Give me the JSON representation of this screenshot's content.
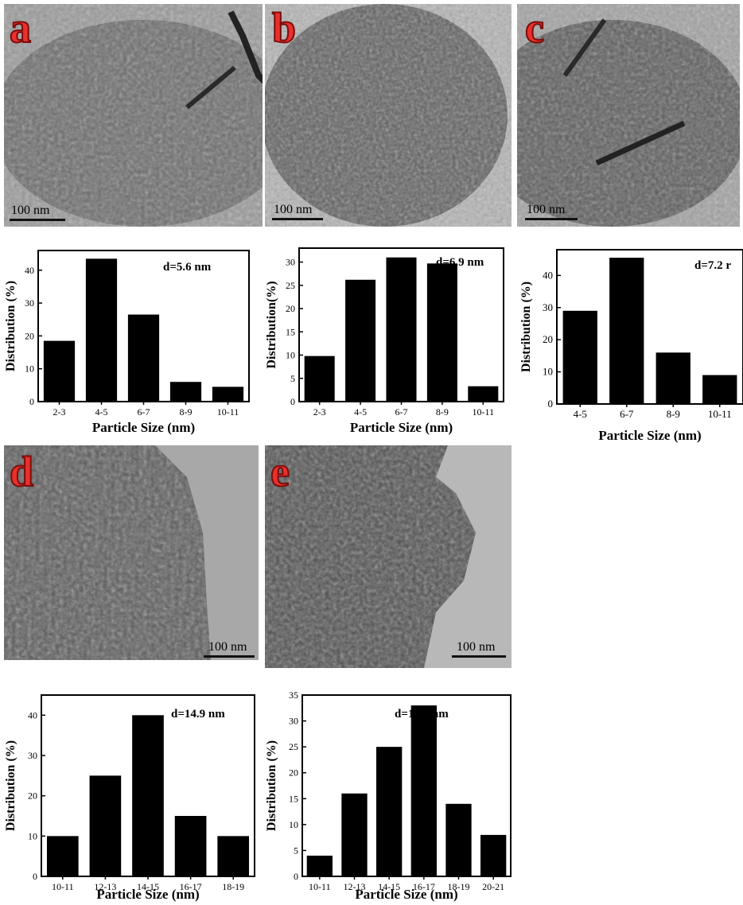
{
  "panels": {
    "a": {
      "letter": "a",
      "scale": "100 nm"
    },
    "b": {
      "letter": "b",
      "scale": "100 nm"
    },
    "c": {
      "letter": "c",
      "scale": "100 nm"
    },
    "d": {
      "letter": "d",
      "scale": "100 nm"
    },
    "e": {
      "letter": "e",
      "scale": "100 nm"
    }
  },
  "chart_data": [
    {
      "id": "a",
      "type": "bar",
      "categories": [
        "2-3",
        "4-5",
        "6-7",
        "8-9",
        "10-11"
      ],
      "values": [
        18.5,
        43.5,
        26.5,
        6,
        4.5
      ],
      "ylim": [
        0,
        46
      ],
      "yticks": [
        0,
        10,
        20,
        30,
        40
      ],
      "xlabel": "Particle Size (nm)",
      "ylabel": "Distribution (%)",
      "annotation": "d=5.6 nm",
      "bar_color": "#000000"
    },
    {
      "id": "b",
      "type": "bar",
      "categories": [
        "2-3",
        "4-5",
        "6-7",
        "8-9",
        "10-11"
      ],
      "values": [
        9.8,
        26.2,
        31,
        29.7,
        3.3
      ],
      "ylim": [
        0,
        33
      ],
      "yticks": [
        0,
        5,
        10,
        15,
        20,
        25,
        30
      ],
      "xlabel": "Particle Size (nm)",
      "ylabel": "Distribution(%)",
      "annotation": "d=6.9 nm",
      "bar_color": "#000000"
    },
    {
      "id": "c",
      "type": "bar",
      "categories": [
        "4-5",
        "6-7",
        "8-9",
        "10-11"
      ],
      "values": [
        29,
        45.5,
        16,
        9
      ],
      "ylim": [
        0,
        48
      ],
      "yticks": [
        0,
        10,
        20,
        30,
        40
      ],
      "xlabel": "Particle Size (nm)",
      "ylabel": "Distribution (%)",
      "annotation": "d=7.2 r",
      "bar_color": "#000000"
    },
    {
      "id": "d",
      "type": "bar",
      "categories": [
        "10-11",
        "12-13",
        "14-15",
        "16-17",
        "18-19"
      ],
      "values": [
        10,
        25,
        40,
        15,
        10
      ],
      "ylim": [
        0,
        45
      ],
      "yticks": [
        0,
        10,
        20,
        30,
        40
      ],
      "xlabel": "Particle Size (nm)",
      "ylabel": "Distribution (%)",
      "annotation": "d=14.9 nm",
      "bar_color": "#000000"
    },
    {
      "id": "e",
      "type": "bar",
      "categories": [
        "10-11",
        "12-13",
        "14-15",
        "16-17",
        "18-19",
        "20-21"
      ],
      "values": [
        4,
        16,
        25,
        33,
        14,
        8
      ],
      "ylim": [
        0,
        35
      ],
      "yticks": [
        0,
        5,
        10,
        15,
        20,
        25,
        30,
        35
      ],
      "xlabel": "Particle Size (nm)",
      "ylabel": "Distribution (%)",
      "annotation": "d=16.5 nm",
      "bar_color": "#000000"
    }
  ]
}
